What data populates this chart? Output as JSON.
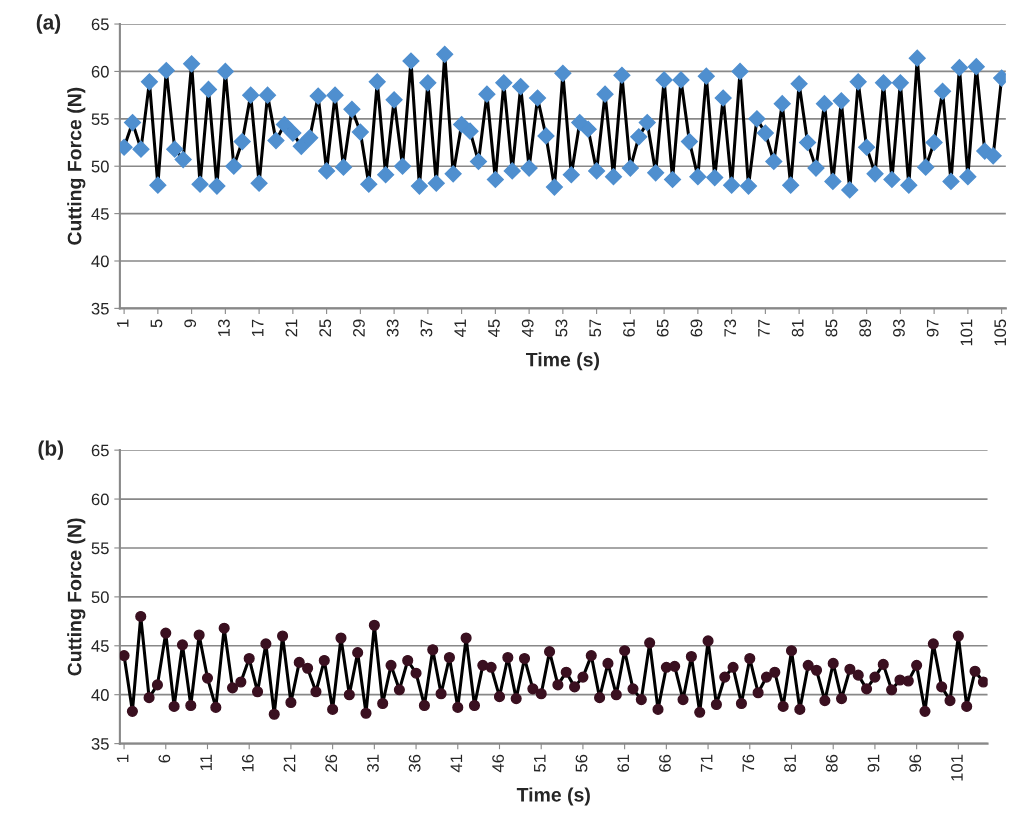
{
  "chart_data": [
    {
      "type": "line",
      "xlabel": "Time (s)",
      "ylabel": "Cutting Force (N)",
      "annotations": [
        "(a)"
      ],
      "x": [
        1,
        2,
        3,
        4,
        5,
        6,
        7,
        8,
        9,
        10,
        11,
        12,
        13,
        14,
        15,
        16,
        17,
        18,
        19,
        20,
        21,
        22,
        23,
        24,
        25,
        26,
        27,
        28,
        29,
        30,
        31,
        32,
        33,
        34,
        35,
        36,
        37,
        38,
        39,
        40,
        41,
        42,
        43,
        44,
        45,
        46,
        47,
        48,
        49,
        50,
        51,
        52,
        53,
        54,
        55,
        56,
        57,
        58,
        59,
        60,
        61,
        62,
        63,
        64,
        65,
        66,
        67,
        68,
        69,
        70,
        71,
        72,
        73,
        74,
        75,
        76,
        77,
        78,
        79,
        80,
        81,
        82,
        83,
        84,
        85,
        86,
        87,
        88,
        89,
        90,
        91,
        92,
        93,
        94,
        95,
        96,
        97,
        98,
        99,
        100,
        101,
        102,
        103,
        104,
        105
      ],
      "series": [
        {
          "color": "#4f8fcf",
          "values": [
            52.0,
            54.6,
            51.8,
            58.9,
            48.0,
            60.1,
            51.8,
            50.7,
            60.8,
            48.1,
            58.1,
            47.9,
            60.0,
            50.0,
            52.6,
            57.5,
            48.2,
            57.5,
            52.7,
            54.4,
            53.5,
            52.1,
            53.0,
            57.4,
            49.5,
            57.5,
            49.9,
            56.0,
            53.6,
            48.1,
            58.9,
            49.1,
            57.0,
            50.0,
            61.1,
            47.9,
            58.8,
            48.2,
            61.8,
            49.2,
            54.4,
            53.7,
            50.5,
            57.6,
            48.6,
            58.8,
            49.5,
            58.4,
            49.8,
            57.2,
            53.2,
            47.8,
            59.8,
            49.1,
            54.6,
            53.9,
            49.5,
            57.6,
            48.9,
            59.6,
            49.8,
            53.1,
            54.6,
            49.3,
            59.1,
            48.6,
            59.1,
            52.6,
            48.9,
            59.5,
            48.8,
            57.2,
            48.0,
            60.0,
            47.9,
            55.0,
            53.5,
            50.5,
            56.6,
            48.0,
            58.7,
            52.5,
            49.8,
            56.6,
            48.4,
            56.9,
            47.5,
            58.9,
            52.0,
            49.2,
            58.8,
            48.6,
            58.8,
            48.0,
            61.4,
            49.9,
            52.5,
            57.9,
            48.4,
            60.4,
            48.9,
            60.5,
            51.6,
            51.1,
            59.3
          ]
        }
      ],
      "marker": "diamond",
      "line_style": "solid",
      "xlim": [
        0.5,
        105.5
      ],
      "xticks": [
        1,
        5,
        9,
        13,
        17,
        21,
        25,
        29,
        33,
        37,
        41,
        45,
        49,
        53,
        57,
        61,
        65,
        69,
        73,
        77,
        81,
        85,
        89,
        93,
        97,
        101,
        105
      ],
      "ylim": [
        35,
        65
      ],
      "yticks": [
        35,
        40,
        45,
        50,
        55,
        60,
        65
      ],
      "grid": "y",
      "legend": false
    },
    {
      "type": "line",
      "xlabel": "Time (s)",
      "ylabel": "Cutting Force (N)",
      "annotations": [
        "(b)"
      ],
      "x": [
        1,
        2,
        3,
        4,
        5,
        6,
        7,
        8,
        9,
        10,
        11,
        12,
        13,
        14,
        15,
        16,
        17,
        18,
        19,
        20,
        21,
        22,
        23,
        24,
        25,
        26,
        27,
        28,
        29,
        30,
        31,
        32,
        33,
        34,
        35,
        36,
        37,
        38,
        39,
        40,
        41,
        42,
        43,
        44,
        45,
        46,
        47,
        48,
        49,
        50,
        51,
        52,
        53,
        54,
        55,
        56,
        57,
        58,
        59,
        60,
        61,
        62,
        63,
        64,
        65,
        66,
        67,
        68,
        69,
        70,
        71,
        72,
        73,
        74,
        75,
        76,
        77,
        78,
        79,
        80,
        81,
        82,
        83,
        84,
        85,
        86,
        87,
        88,
        89,
        90,
        91,
        92,
        93,
        94,
        95,
        96,
        97,
        98,
        99,
        100,
        101,
        102,
        103,
        104
      ],
      "series": [
        {
          "color": "#3a1020",
          "values": [
            44.0,
            38.3,
            48.0,
            39.7,
            41.0,
            46.3,
            38.8,
            45.1,
            38.9,
            46.1,
            41.7,
            38.7,
            46.8,
            40.7,
            41.3,
            43.7,
            40.3,
            45.2,
            38.0,
            46.0,
            39.2,
            43.3,
            42.7,
            40.3,
            43.5,
            38.5,
            45.8,
            40.0,
            44.3,
            38.1,
            47.1,
            39.1,
            43.0,
            40.5,
            43.5,
            42.2,
            38.9,
            44.6,
            40.1,
            43.8,
            38.7,
            45.8,
            38.9,
            43.0,
            42.8,
            39.8,
            43.8,
            39.6,
            43.7,
            40.6,
            40.1,
            44.4,
            41.0,
            42.3,
            40.8,
            41.8,
            44.0,
            39.7,
            43.2,
            40.0,
            44.5,
            40.6,
            39.5,
            45.3,
            38.5,
            42.8,
            42.9,
            39.5,
            43.9,
            38.2,
            45.5,
            39.0,
            41.8,
            42.8,
            39.1,
            43.7,
            40.2,
            41.8,
            42.3,
            38.8,
            44.5,
            38.5,
            43.0,
            42.5,
            39.4,
            43.2,
            39.6,
            42.6,
            42.0,
            40.6,
            41.8,
            43.1,
            40.5,
            41.5,
            41.4,
            43.0,
            38.3,
            45.2,
            40.8,
            39.4,
            46.0,
            38.8,
            42.4,
            41.3
          ]
        }
      ],
      "marker": "circle",
      "line_style": "solid",
      "xlim": [
        0.5,
        104.5
      ],
      "xticks": [
        1,
        6,
        11,
        16,
        21,
        26,
        31,
        36,
        41,
        46,
        51,
        56,
        61,
        66,
        71,
        76,
        81,
        86,
        91,
        96,
        101
      ],
      "ylim": [
        35,
        65
      ],
      "yticks": [
        35,
        40,
        45,
        50,
        55,
        60,
        65
      ],
      "grid": "y",
      "legend": false
    }
  ]
}
